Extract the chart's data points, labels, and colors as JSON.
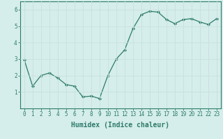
{
  "x": [
    0,
    1,
    2,
    3,
    4,
    5,
    6,
    7,
    8,
    9,
    10,
    11,
    12,
    13,
    14,
    15,
    16,
    17,
    18,
    19,
    20,
    21,
    22,
    23
  ],
  "y": [
    2.95,
    1.35,
    2.0,
    2.15,
    1.85,
    1.45,
    1.35,
    0.7,
    0.75,
    0.6,
    2.0,
    3.0,
    3.55,
    4.85,
    5.7,
    5.9,
    5.85,
    5.4,
    5.15,
    5.4,
    5.45,
    5.25,
    5.1,
    5.45
  ],
  "line_color": "#2d7a6a",
  "marker": "D",
  "marker_size": 2.0,
  "bg_color": "#d5eeeb",
  "grid_color": "#c8e0dc",
  "axis_color": "#2d7a6a",
  "xlabel": "Humidex (Indice chaleur)",
  "xlabel_fontsize": 7.0,
  "tick_fontsize": 5.5,
  "ylim": [
    0,
    6.5
  ],
  "yticks": [
    1,
    2,
    3,
    4,
    5,
    6
  ],
  "xlim": [
    -0.5,
    23.5
  ],
  "xticks": [
    0,
    1,
    2,
    3,
    4,
    5,
    6,
    7,
    8,
    9,
    10,
    11,
    12,
    13,
    14,
    15,
    16,
    17,
    18,
    19,
    20,
    21,
    22,
    23
  ]
}
